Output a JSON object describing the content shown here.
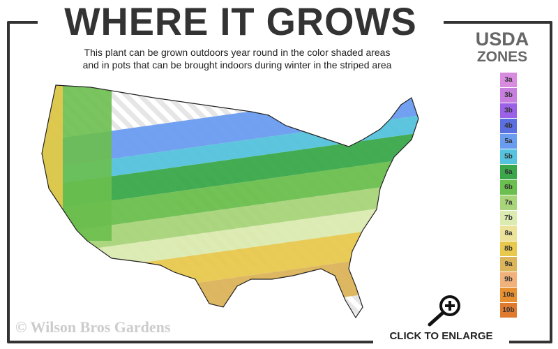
{
  "header": {
    "title": "WHERE IT GROWS",
    "subtitle_line1": "This plant can be grown outdoors year round in the color shaded areas",
    "subtitle_line2": "and in pots that can be brought indoors during winter in the striped area"
  },
  "legend": {
    "title_line1": "USDA",
    "title_line2": "ZONES",
    "zones": [
      {
        "label": "3a",
        "color": "#d98be0"
      },
      {
        "label": "3b",
        "color": "#c77ede"
      },
      {
        "label": "3b",
        "color": "#9b62e8"
      },
      {
        "label": "4b",
        "color": "#5a6fe0"
      },
      {
        "label": "5a",
        "color": "#6a9cf0"
      },
      {
        "label": "5b",
        "color": "#55c3dd"
      },
      {
        "label": "6a",
        "color": "#3aa84a"
      },
      {
        "label": "6b",
        "color": "#6bbf4e"
      },
      {
        "label": "7a",
        "color": "#a8d47a"
      },
      {
        "label": "7b",
        "color": "#dcebb0"
      },
      {
        "label": "8a",
        "color": "#ede29a"
      },
      {
        "label": "8b",
        "color": "#e8c94e"
      },
      {
        "label": "9a",
        "color": "#dcb45a"
      },
      {
        "label": "9b",
        "color": "#f0b27a"
      },
      {
        "label": "10a",
        "color": "#e89030"
      },
      {
        "label": "10b",
        "color": "#e07a2e"
      }
    ]
  },
  "footer": {
    "copyright": "© Wilson Bros Gardens",
    "enlarge_label": "CLICK TO ENLARGE"
  },
  "icons": {
    "enlarge": "magnifier-plus-icon"
  }
}
